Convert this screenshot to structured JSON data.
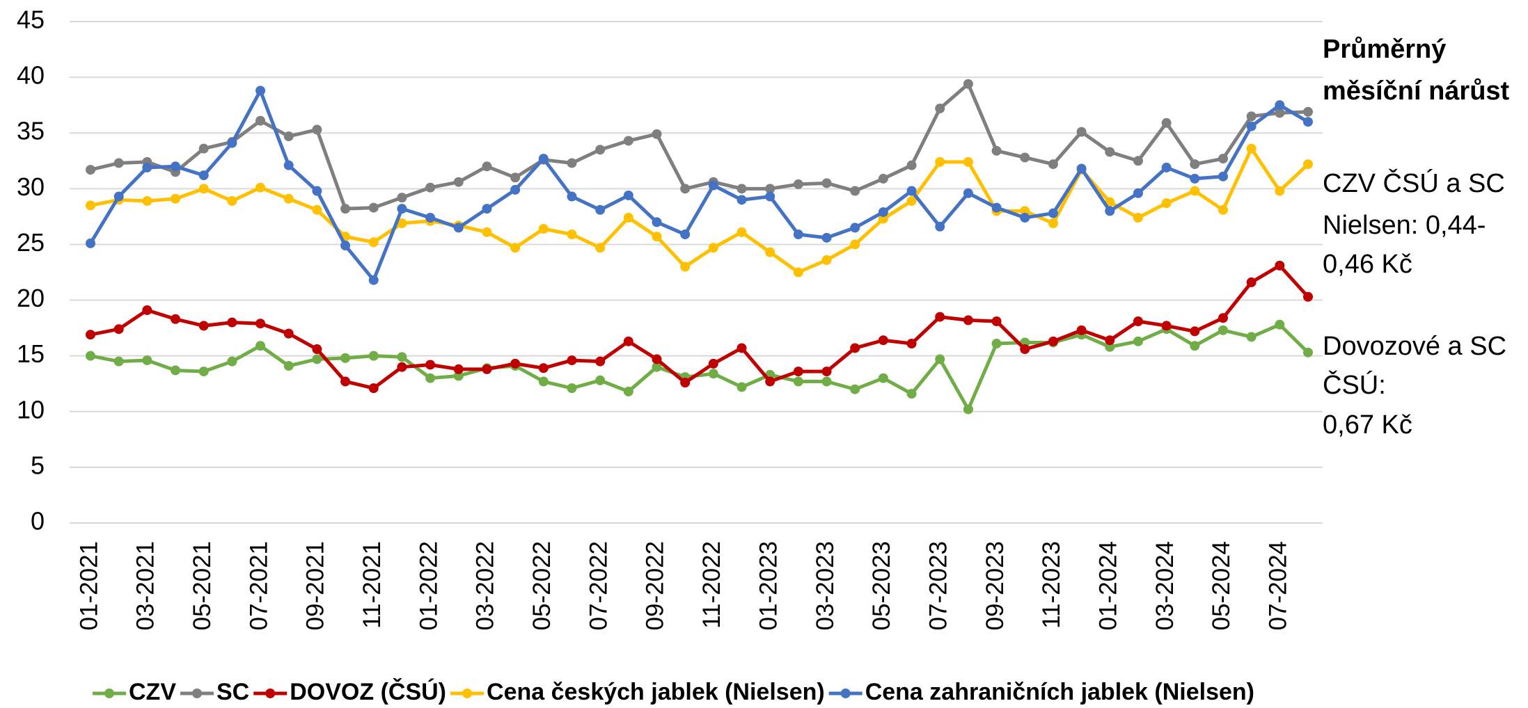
{
  "chart_data": {
    "type": "line",
    "categories": [
      "01-2021",
      null,
      "03-2021",
      null,
      "05-2021",
      null,
      "07-2021",
      null,
      "09-2021",
      null,
      "11-2021",
      null,
      "01-2022",
      null,
      "03-2022",
      null,
      "05-2022",
      null,
      "07-2022",
      null,
      "09-2022",
      null,
      "11-2022",
      null,
      "01-2023",
      null,
      "03-2023",
      null,
      "05-2023",
      null,
      "07-2023",
      null,
      "09-2023",
      null,
      "11-2023",
      null,
      "01-2024",
      null,
      "03-2024",
      null,
      "05-2024",
      null,
      "07-2024",
      null
    ],
    "series": [
      {
        "name": "CZV",
        "color": "#70ad47",
        "values": [
          15.0,
          14.5,
          14.6,
          13.7,
          13.6,
          14.5,
          15.9,
          14.1,
          14.7,
          14.8,
          15.0,
          14.9,
          13.0,
          13.2,
          13.9,
          14.1,
          12.7,
          12.1,
          12.8,
          11.8,
          14.0,
          13.1,
          13.4,
          12.2,
          13.3,
          12.7,
          12.7,
          12.0,
          13.0,
          11.6,
          14.7,
          10.2,
          16.1,
          16.2,
          16.2,
          16.9,
          15.8,
          16.3,
          17.4,
          15.9,
          17.3,
          16.7,
          17.8,
          15.3
        ]
      },
      {
        "name": "SC",
        "color": "#7f7f7f",
        "values": [
          31.7,
          32.3,
          32.4,
          31.5,
          33.6,
          34.2,
          36.1,
          34.7,
          35.3,
          28.2,
          28.3,
          29.2,
          30.1,
          30.6,
          32.0,
          31.0,
          32.6,
          32.3,
          33.5,
          34.3,
          34.9,
          30.0,
          30.6,
          30.0,
          30.0,
          30.4,
          30.5,
          29.8,
          30.9,
          32.1,
          37.2,
          39.4,
          33.4,
          32.8,
          32.2,
          35.1,
          33.3,
          32.5,
          35.9,
          32.2,
          32.7,
          36.5,
          36.8,
          36.9
        ]
      },
      {
        "name": "DOVOZ (ČSÚ)",
        "color": "#c00000",
        "values": [
          16.9,
          17.4,
          19.1,
          18.3,
          17.7,
          18.0,
          17.9,
          17.0,
          15.6,
          12.7,
          12.1,
          14.0,
          14.2,
          13.8,
          13.8,
          14.3,
          13.9,
          14.6,
          14.5,
          16.3,
          14.7,
          12.6,
          14.3,
          15.7,
          12.7,
          13.6,
          13.6,
          15.7,
          16.4,
          16.1,
          18.5,
          18.2,
          18.1,
          15.6,
          16.3,
          17.3,
          16.4,
          18.1,
          17.7,
          17.2,
          18.4,
          21.6,
          23.1,
          20.3
        ]
      },
      {
        "name": "Cena českých jablek (Nielsen)",
        "color": "#ffc000",
        "values": [
          28.5,
          29.0,
          28.9,
          29.1,
          30.0,
          28.9,
          30.1,
          29.1,
          28.1,
          25.7,
          25.2,
          26.9,
          27.1,
          26.7,
          26.1,
          24.7,
          26.4,
          25.9,
          24.7,
          27.4,
          25.7,
          23.0,
          24.7,
          26.1,
          24.3,
          22.5,
          23.6,
          25.0,
          27.3,
          28.9,
          32.4,
          32.4,
          28.0,
          28.0,
          26.9,
          31.7,
          28.8,
          27.4,
          28.7,
          29.8,
          28.1,
          33.6,
          29.8,
          32.2
        ]
      },
      {
        "name": "Cena zahraničních jablek (Nielsen)",
        "color": "#4472c4",
        "values": [
          25.1,
          29.3,
          31.9,
          32.0,
          31.2,
          34.1,
          38.8,
          32.1,
          29.8,
          24.9,
          21.8,
          28.2,
          27.4,
          26.5,
          28.2,
          29.9,
          32.7,
          29.3,
          28.1,
          29.4,
          27.0,
          25.9,
          30.3,
          29.0,
          29.3,
          25.9,
          25.6,
          26.5,
          27.9,
          29.8,
          26.6,
          29.6,
          28.3,
          27.4,
          27.8,
          31.8,
          28.0,
          29.6,
          31.9,
          30.9,
          31.1,
          35.6,
          37.5,
          36.0
        ]
      }
    ],
    "ylim": [
      0,
      45
    ],
    "yticks": [
      0,
      5,
      10,
      15,
      20,
      25,
      30,
      35,
      40,
      45
    ],
    "grid": true,
    "annotation_title": [
      "Průměrný",
      "měsíční nárůst"
    ],
    "annotations": [
      [
        "CZV ČSÚ a SC",
        "Nielsen: 0,44-",
        "0,46 Kč"
      ],
      [
        "Dovozové a SC",
        "ČSÚ:",
        "0,67 Kč"
      ]
    ],
    "legend": "bottom"
  }
}
